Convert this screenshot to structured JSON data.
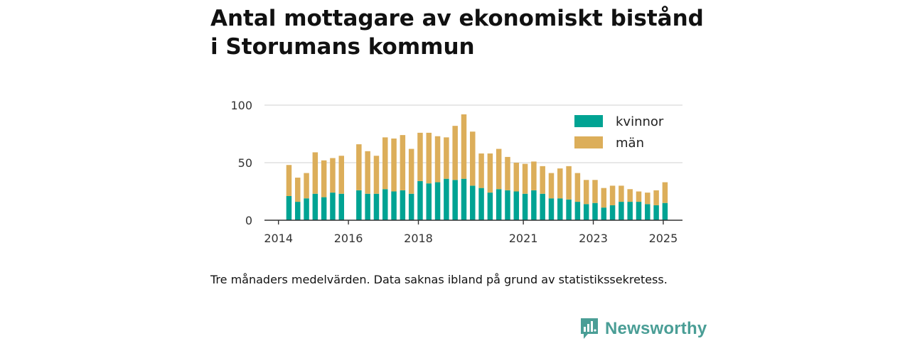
{
  "title_line1": "Antal mottagare av ekonomiskt bistånd",
  "title_line2": "i Storumans kommun",
  "note": "Tre månaders medelvärden. Data saknas ibland på grund av statistikssekretess.",
  "brand": "Newsworthy",
  "colors": {
    "kvinnor": "#00a393",
    "man": "#dcae5a",
    "grid": "#d9d9d9",
    "axis": "#333333",
    "brand": "#4a9e96"
  },
  "chart_data": {
    "type": "bar",
    "stacked": true,
    "ylim": [
      0,
      100
    ],
    "yticks": [
      0,
      50,
      100
    ],
    "xlim": [
      2013.6,
      2025.55
    ],
    "xticks": [
      {
        "value": 2014,
        "label": "2014"
      },
      {
        "value": 2016,
        "label": "2016"
      },
      {
        "value": 2018,
        "label": "2018"
      },
      {
        "value": 2021,
        "label": "2021"
      },
      {
        "value": 2023,
        "label": "2023"
      },
      {
        "value": 2025,
        "label": "2025"
      }
    ],
    "legend_position": "top-right",
    "grid": true,
    "x": [
      2014.3,
      2014.55,
      2014.8,
      2015.05,
      2015.3,
      2015.55,
      2015.8,
      2016.3,
      2016.55,
      2016.8,
      2017.05,
      2017.3,
      2017.55,
      2017.8,
      2018.05,
      2018.3,
      2018.55,
      2018.8,
      2019.05,
      2019.3,
      2019.55,
      2019.8,
      2020.05,
      2020.3,
      2020.55,
      2020.8,
      2021.05,
      2021.3,
      2021.55,
      2021.8,
      2022.05,
      2022.3,
      2022.55,
      2022.8,
      2023.05,
      2023.3,
      2023.55,
      2023.8,
      2024.05,
      2024.3,
      2024.55,
      2024.8,
      2025.05
    ],
    "series": [
      {
        "name": "kvinnor",
        "values": [
          21,
          16,
          19,
          23,
          20,
          24,
          23,
          26,
          23,
          23,
          27,
          25,
          26,
          23,
          34,
          32,
          33,
          36,
          35,
          36,
          30,
          28,
          24,
          27,
          26,
          25,
          23,
          26,
          23,
          19,
          19,
          18,
          16,
          14,
          15,
          11,
          13,
          16,
          16,
          16,
          14,
          13,
          15
        ]
      },
      {
        "name": "män",
        "values": [
          27,
          21,
          22,
          36,
          32,
          30,
          33,
          40,
          37,
          33,
          45,
          46,
          48,
          39,
          42,
          44,
          40,
          36,
          47,
          56,
          47,
          30,
          34,
          35,
          29,
          25,
          26,
          25,
          24,
          22,
          26,
          29,
          25,
          21,
          20,
          17,
          17,
          14,
          11,
          9,
          10,
          13,
          18
        ]
      }
    ]
  }
}
